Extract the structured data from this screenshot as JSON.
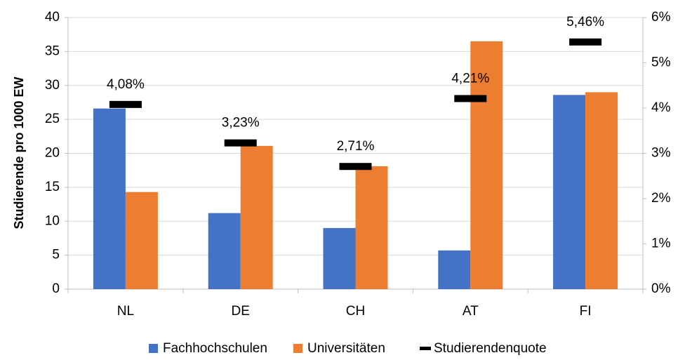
{
  "chart_data": {
    "type": "bar",
    "categories": [
      "NL",
      "DE",
      "CH",
      "AT",
      "FI"
    ],
    "series": [
      {
        "name": "Fachhochschulen",
        "color": "#4472c4",
        "values": [
          26.6,
          11.2,
          9.0,
          5.7,
          28.6
        ]
      },
      {
        "name": "Universitäten",
        "color": "#ed7d31",
        "values": [
          14.3,
          21.1,
          18.1,
          36.5,
          29.0
        ]
      },
      {
        "name": "Studierendenquote",
        "color": "#000000",
        "axis": "y2",
        "values": [
          4.08,
          3.23,
          2.71,
          4.21,
          5.46
        ],
        "value_labels": [
          "4,08%",
          "3,23%",
          "2,71%",
          "4,21%",
          "5,46%"
        ]
      }
    ],
    "ylabel": "Studierende pro 1000 EW",
    "ylim": [
      0,
      40
    ],
    "yticks": [
      0,
      5,
      10,
      15,
      20,
      25,
      30,
      35,
      40
    ],
    "y2lim": [
      0,
      6
    ],
    "y2ticks": [
      {
        "value": 0,
        "label": "0%"
      },
      {
        "value": 1,
        "label": "1%"
      },
      {
        "value": 2,
        "label": "2%"
      },
      {
        "value": 3,
        "label": "3%"
      },
      {
        "value": 4,
        "label": "4%"
      },
      {
        "value": 5,
        "label": "5%"
      },
      {
        "value": 6,
        "label": "6%"
      }
    ],
    "grid": true,
    "legend": "bottom"
  }
}
